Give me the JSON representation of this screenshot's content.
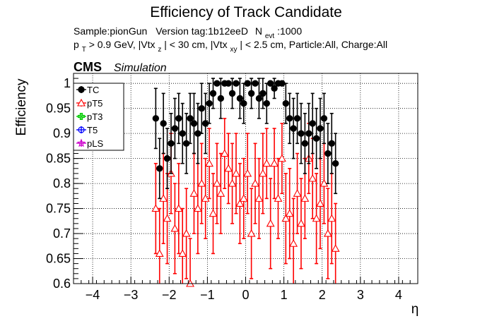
{
  "chart_data": {
    "type": "scatter",
    "title": "Efficiency of Track Candidate",
    "subtitle_line1": {
      "sample": "Sample:pionGun",
      "version": "Version tag:1b12eeD",
      "nevt_label": "N",
      "nevt_sub": "evt",
      "nevt_value": ":1000"
    },
    "subtitle_line2": {
      "p": "p",
      "p_sub": "T",
      "a": " > 0.9 GeV, |Vtx",
      "a_sub": "z",
      "b": "| < 30 cm, |Vtx",
      "b_sub": "xy",
      "c": "| < 2.5 cm, Particle:All, Charge:All"
    },
    "cms_label": "CMS",
    "simulation_label": "Simulation",
    "xlabel": "η",
    "ylabel": "Efficiency",
    "xlim": [
      -4.5,
      4.5
    ],
    "ylim": [
      0.6,
      1.02
    ],
    "grid": true,
    "legend_position": "top-left",
    "x_ticks": [
      "−4",
      "−3",
      "−2",
      "−1",
      "0",
      "1",
      "2",
      "3",
      "4"
    ],
    "y_ticks": [
      "0.6",
      "0.65",
      "0.7",
      "0.75",
      "0.8",
      "0.85",
      "0.9",
      "0.95",
      "1"
    ],
    "series": [
      {
        "name": "TC",
        "color": "#000000",
        "marker": "filled-circle",
        "x": [
          -2.35,
          -2.25,
          -2.15,
          -2.05,
          -1.95,
          -1.85,
          -1.75,
          -1.65,
          -1.55,
          -1.45,
          -1.35,
          -1.25,
          -1.15,
          -1.05,
          -0.95,
          -0.85,
          -0.75,
          -0.65,
          -0.55,
          -0.45,
          -0.35,
          -0.25,
          -0.15,
          -0.05,
          0.05,
          0.15,
          0.25,
          0.35,
          0.45,
          0.55,
          0.65,
          0.75,
          0.85,
          0.95,
          1.05,
          1.15,
          1.25,
          1.35,
          1.45,
          1.55,
          1.65,
          1.75,
          1.85,
          1.95,
          2.05,
          2.15,
          2.25,
          2.35
        ],
        "y": [
          0.93,
          0.83,
          0.92,
          0.85,
          0.88,
          0.91,
          0.93,
          0.9,
          0.88,
          0.93,
          0.92,
          0.9,
          0.95,
          0.92,
          0.96,
          0.98,
          1.0,
          0.97,
          1.0,
          1.0,
          0.98,
          1.0,
          0.97,
          0.96,
          1.0,
          0.98,
          1.0,
          0.97,
          0.98,
          0.96,
          1.0,
          0.99,
          1.0,
          1.0,
          0.96,
          0.93,
          0.91,
          0.93,
          0.9,
          0.88,
          0.9,
          0.92,
          0.89,
          0.91,
          0.93,
          0.86,
          0.88,
          0.84
        ],
        "err": [
          0.06,
          0.06,
          0.06,
          0.06,
          0.06,
          0.06,
          0.05,
          0.06,
          0.06,
          0.05,
          0.06,
          0.06,
          0.05,
          0.06,
          0.04,
          0.03,
          0.0,
          0.04,
          0.0,
          0.0,
          0.03,
          0.0,
          0.04,
          0.04,
          0.0,
          0.03,
          0.0,
          0.04,
          0.03,
          0.04,
          0.0,
          0.02,
          0.0,
          0.0,
          0.04,
          0.05,
          0.06,
          0.05,
          0.06,
          0.06,
          0.06,
          0.06,
          0.06,
          0.06,
          0.05,
          0.06,
          0.06,
          0.06
        ]
      },
      {
        "name": "pT5",
        "color": "#ff0000",
        "marker": "open-triangle",
        "x": [
          -2.35,
          -2.25,
          -2.15,
          -2.05,
          -1.95,
          -1.85,
          -1.75,
          -1.65,
          -1.55,
          -1.45,
          -1.35,
          -1.25,
          -1.15,
          -1.05,
          -0.95,
          -0.85,
          -0.75,
          -0.65,
          -0.55,
          -0.45,
          -0.35,
          -0.25,
          -0.15,
          -0.05,
          0.05,
          0.15,
          0.25,
          0.35,
          0.45,
          0.55,
          0.65,
          0.75,
          0.85,
          0.95,
          1.05,
          1.15,
          1.25,
          1.35,
          1.45,
          1.55,
          1.65,
          1.75,
          1.85,
          1.95,
          2.05,
          2.15,
          2.25,
          2.35
        ],
        "y": [
          0.75,
          0.66,
          0.77,
          0.73,
          0.82,
          0.71,
          0.75,
          0.66,
          0.7,
          0.6,
          0.78,
          0.75,
          0.8,
          0.77,
          0.84,
          0.74,
          0.8,
          0.78,
          0.86,
          0.83,
          0.8,
          0.82,
          0.76,
          0.77,
          0.82,
          0.7,
          0.8,
          0.77,
          0.82,
          0.84,
          0.72,
          0.84,
          0.77,
          0.85,
          0.73,
          0.74,
          0.68,
          0.78,
          0.72,
          0.77,
          0.85,
          0.81,
          0.73,
          0.76,
          0.8,
          0.7,
          0.73,
          0.67
        ],
        "err": [
          0.09,
          0.09,
          0.09,
          0.09,
          0.08,
          0.09,
          0.09,
          0.09,
          0.09,
          0.09,
          0.08,
          0.09,
          0.08,
          0.08,
          0.07,
          0.08,
          0.08,
          0.08,
          0.07,
          0.07,
          0.08,
          0.08,
          0.08,
          0.08,
          0.08,
          0.09,
          0.08,
          0.08,
          0.08,
          0.07,
          0.09,
          0.07,
          0.08,
          0.07,
          0.09,
          0.09,
          0.09,
          0.08,
          0.09,
          0.08,
          0.07,
          0.08,
          0.09,
          0.09,
          0.08,
          0.09,
          0.09,
          0.09
        ]
      },
      {
        "name": "pT3",
        "color": "#00cc00",
        "marker": "open-cross",
        "x": [],
        "y": [],
        "err": []
      },
      {
        "name": "T5",
        "color": "#0000ff",
        "marker": "open-circle",
        "x": [],
        "y": [],
        "err": []
      },
      {
        "name": "pLS",
        "color": "#cc00cc",
        "marker": "open-star",
        "x": [],
        "y": [],
        "err": []
      }
    ]
  }
}
